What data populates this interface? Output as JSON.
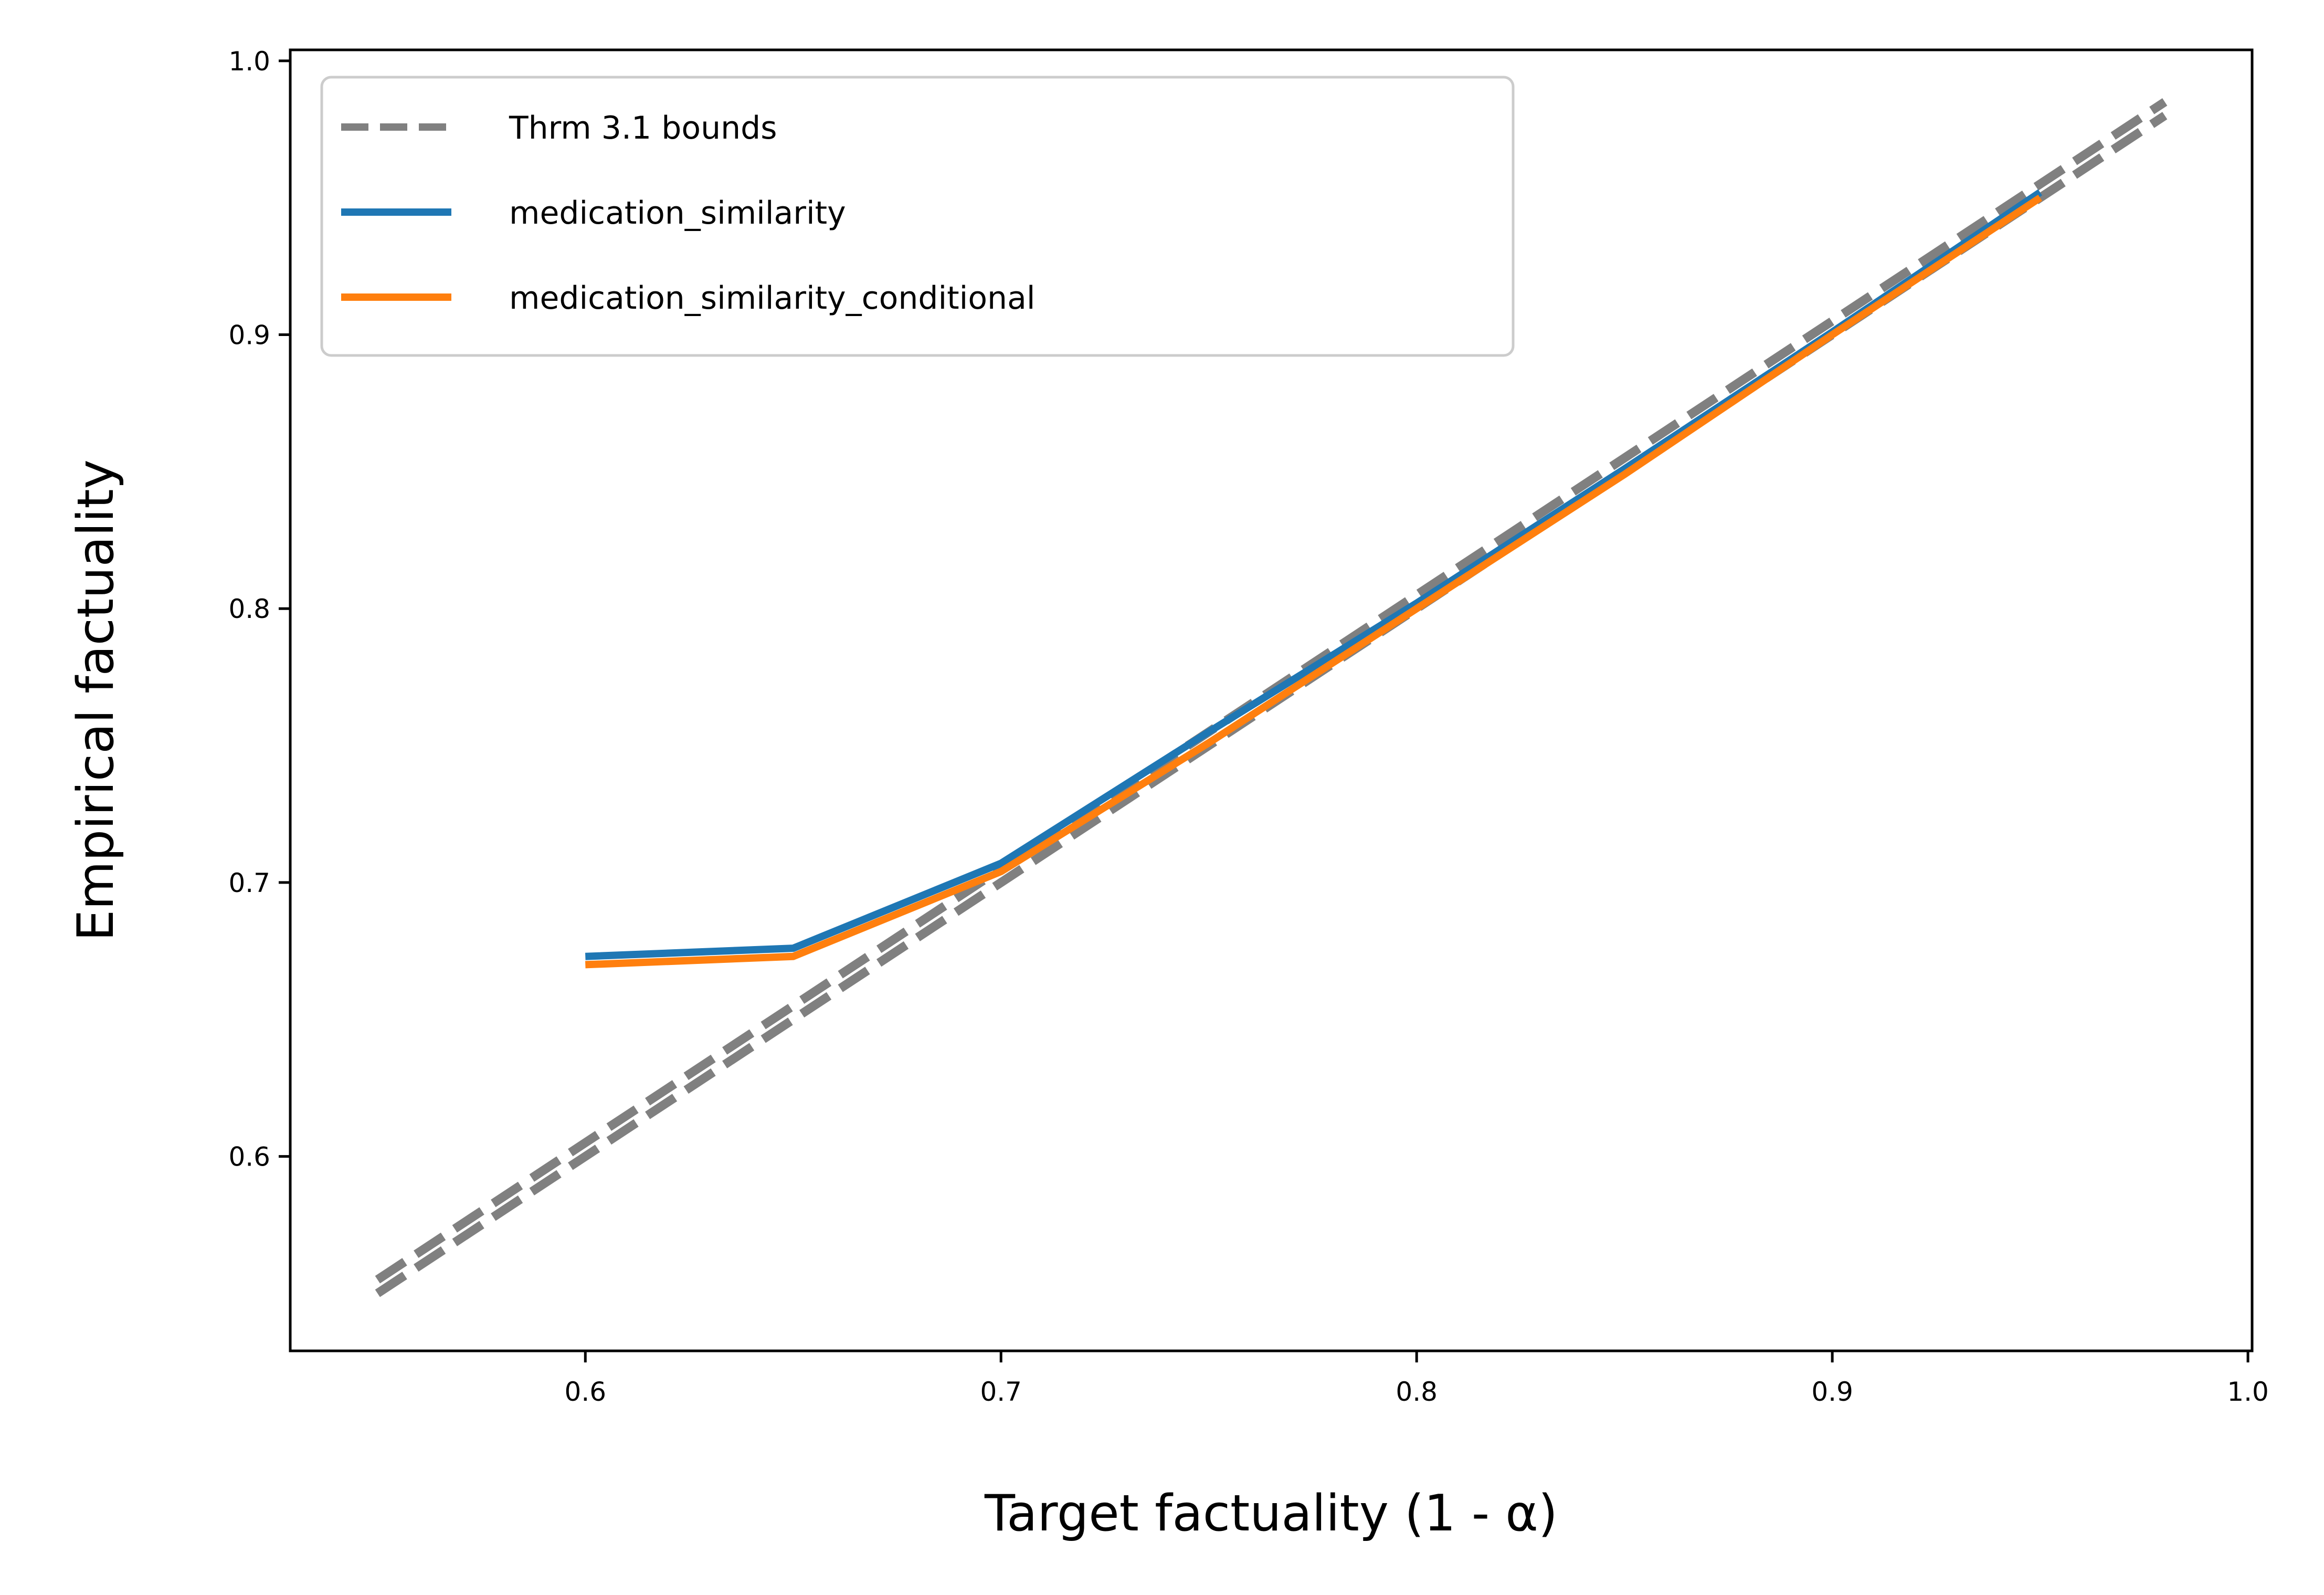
{
  "chart_data": {
    "type": "line",
    "title": "",
    "xlabel": "Target factuality (1 - α)",
    "ylabel": "Empirical factuality",
    "xlim": [
      0.529,
      1.001
    ],
    "ylim": [
      0.529,
      1.004
    ],
    "xticks": [
      0.6,
      0.7,
      0.8,
      0.9,
      1.0
    ],
    "yticks": [
      0.6,
      0.7,
      0.8,
      0.9,
      1.0
    ],
    "xtick_labels": [
      "0.6",
      "0.7",
      "0.8",
      "0.9",
      "1.0"
    ],
    "ytick_labels": [
      "0.6",
      "0.7",
      "0.8",
      "0.9",
      "1.0"
    ],
    "grid": false,
    "legend_position": "top-left",
    "bounds": {
      "name": "Thrm 3.1 bounds",
      "color": "#808080",
      "style": "dashed",
      "lower": {
        "x": [
          0.55,
          0.98
        ],
        "y": [
          0.55,
          0.98
        ]
      },
      "upper": {
        "x": [
          0.55,
          0.98
        ],
        "y": [
          0.555,
          0.985
        ]
      }
    },
    "series": [
      {
        "name": "medication_similarity",
        "color": "#1f77b4",
        "x": [
          0.6,
          0.65,
          0.7,
          0.75,
          0.8,
          0.85,
          0.9,
          0.95
        ],
        "y": [
          0.673,
          0.676,
          0.707,
          0.755,
          0.802,
          0.851,
          0.901,
          0.952
        ]
      },
      {
        "name": "medication_similarity_conditional",
        "color": "#ff7f0e",
        "x": [
          0.6,
          0.65,
          0.7,
          0.75,
          0.8,
          0.85,
          0.9,
          0.95
        ],
        "y": [
          0.67,
          0.673,
          0.704,
          0.751,
          0.8,
          0.849,
          0.9,
          0.95
        ]
      }
    ]
  }
}
